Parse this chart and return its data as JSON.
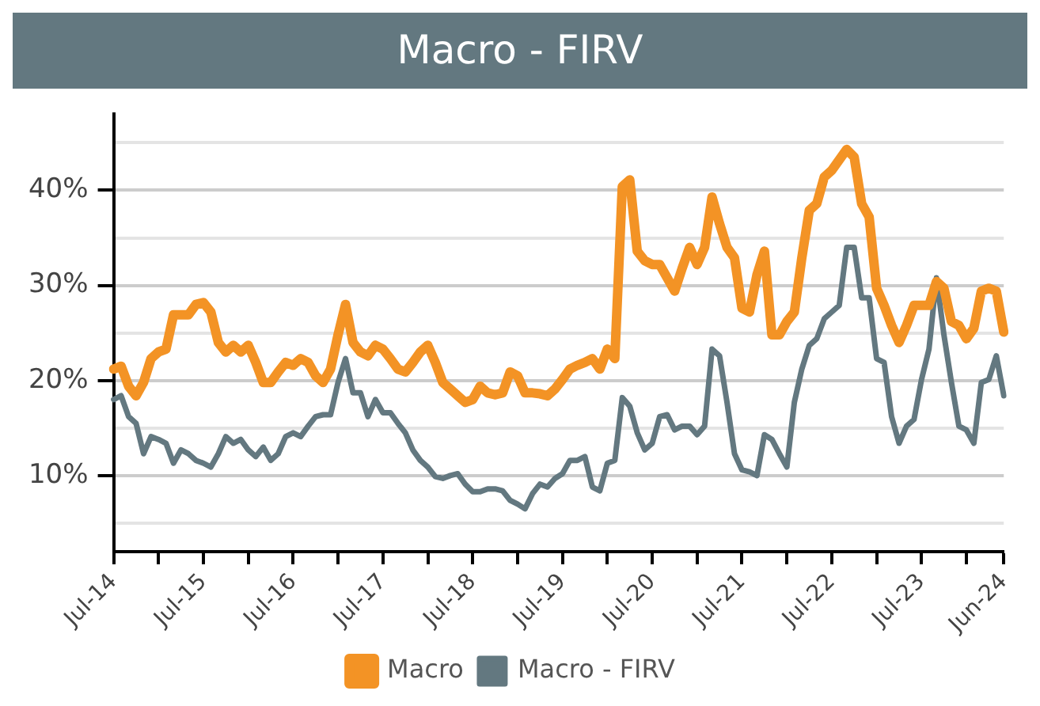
{
  "chart_data": {
    "type": "line",
    "title": "Macro - FIRV",
    "categories": [
      "Jul-14",
      null,
      null,
      null,
      null,
      null,
      null,
      null,
      null,
      null,
      null,
      null,
      "Jul-15",
      null,
      null,
      null,
      null,
      null,
      null,
      null,
      null,
      null,
      null,
      null,
      "Jul-16",
      null,
      null,
      null,
      null,
      null,
      null,
      null,
      null,
      null,
      null,
      null,
      "Jul-17",
      null,
      null,
      null,
      null,
      null,
      null,
      null,
      null,
      null,
      null,
      null,
      "Jul-18",
      null,
      null,
      null,
      null,
      null,
      null,
      null,
      null,
      null,
      null,
      null,
      "Jul-19",
      null,
      null,
      null,
      null,
      null,
      null,
      null,
      null,
      null,
      null,
      null,
      "Jul-20",
      null,
      null,
      null,
      null,
      null,
      null,
      null,
      null,
      null,
      null,
      null,
      "Jul-21",
      null,
      null,
      null,
      null,
      null,
      null,
      null,
      null,
      null,
      null,
      null,
      "Jul-22",
      null,
      null,
      null,
      null,
      null,
      null,
      null,
      null,
      null,
      null,
      null,
      "Jul-23",
      null,
      null,
      null,
      null,
      null,
      null,
      null,
      null,
      null,
      null,
      "Jun-24"
    ],
    "series": [
      {
        "name": "Macro",
        "color": "#f39325",
        "values": [
          21.2,
          21.5,
          19.4,
          18.4,
          19.8,
          22.3,
          23,
          23.3,
          26.9,
          26.9,
          26.9,
          28,
          28.2,
          27.2,
          24,
          23,
          23.7,
          23,
          23.7,
          21.9,
          19.8,
          19.8,
          20.9,
          21.9,
          21.6,
          22.3,
          21.9,
          20.5,
          19.8,
          21.2,
          24.8,
          28,
          24,
          23,
          22.6,
          23.7,
          23.3,
          22.3,
          21.2,
          20.9,
          21.9,
          23,
          23.7,
          21.9,
          19.8,
          19.1,
          18.4,
          17.7,
          18,
          19.4,
          18.7,
          18.5,
          18.7,
          20.9,
          20.5,
          18.7,
          18.7,
          18.6,
          18.4,
          19.1,
          20.1,
          21.2,
          21.6,
          21.9,
          22.3,
          21.2,
          23.3,
          22.3,
          40.4,
          41.1,
          33.6,
          32.6,
          32.2,
          32.2,
          30.8,
          29.4,
          31.8,
          34,
          32.2,
          34,
          39.3,
          36.5,
          34,
          32.9,
          27.6,
          27.2,
          31.1,
          33.6,
          24.8,
          24.8,
          26.2,
          27.2,
          32.9,
          37.9,
          38.6,
          41.4,
          42.1,
          43.2,
          44.3,
          43.5,
          38.6,
          37.2,
          29.7,
          27.9,
          25.8,
          24,
          25.8,
          27.9,
          27.9,
          27.9,
          30.4,
          29.7,
          26.2,
          25.8,
          24.4,
          25.5,
          29.4,
          29.7,
          29.4,
          25.1
        ]
      },
      {
        "name": "Macro - FIRV",
        "color": "#637880",
        "values": [
          18,
          18.4,
          16.2,
          15.5,
          12.3,
          14.1,
          13.8,
          13.4,
          11.3,
          12.7,
          12.3,
          11.6,
          11.3,
          10.9,
          12.3,
          14.1,
          13.4,
          13.8,
          12.7,
          12,
          13,
          11.6,
          12.3,
          14.1,
          14.5,
          14.1,
          15.2,
          16.2,
          16.4,
          16.4,
          19.8,
          22.3,
          18.7,
          18.7,
          16.2,
          18,
          16.6,
          16.6,
          15.5,
          14.5,
          12.7,
          11.6,
          10.9,
          9.9,
          9.7,
          10,
          10.2,
          9.1,
          8.3,
          8.3,
          8.6,
          8.6,
          8.4,
          7.4,
          7,
          6.5,
          8.1,
          9.1,
          8.8,
          9.7,
          10.2,
          11.6,
          11.6,
          12,
          8.8,
          8.4,
          11.3,
          11.6,
          18.2,
          17.3,
          14.5,
          12.7,
          13.4,
          16.2,
          16.4,
          14.8,
          15.2,
          15.2,
          14.3,
          15.2,
          23.3,
          22.6,
          17.7,
          12.3,
          10.6,
          10.4,
          10,
          14.3,
          13.8,
          12.3,
          10.9,
          17.7,
          21.2,
          23.7,
          24.4,
          26.5,
          27.2,
          27.9,
          34,
          34,
          28.7,
          28.7,
          22.3,
          21.9,
          16.2,
          13.4,
          15.2,
          15.9,
          20.1,
          23.3,
          30.8,
          24.8,
          19.8,
          15.2,
          14.8,
          13.4,
          19.8,
          20.1,
          22.6,
          18.4
        ]
      }
    ],
    "ylim": [
      2,
      48
    ],
    "yticks": [
      {
        "value": 5,
        "label": null
      },
      {
        "value": 10,
        "label": "10%"
      },
      {
        "value": 15,
        "label": null
      },
      {
        "value": 20,
        "label": "20%"
      },
      {
        "value": 25,
        "label": null
      },
      {
        "value": 30,
        "label": "30%"
      },
      {
        "value": 35,
        "label": null
      },
      {
        "value": 40,
        "label": "40%"
      },
      {
        "value": 45,
        "label": null
      }
    ],
    "grid": "y",
    "legend": "bottom",
    "marker": "none",
    "line_style": "solid"
  }
}
